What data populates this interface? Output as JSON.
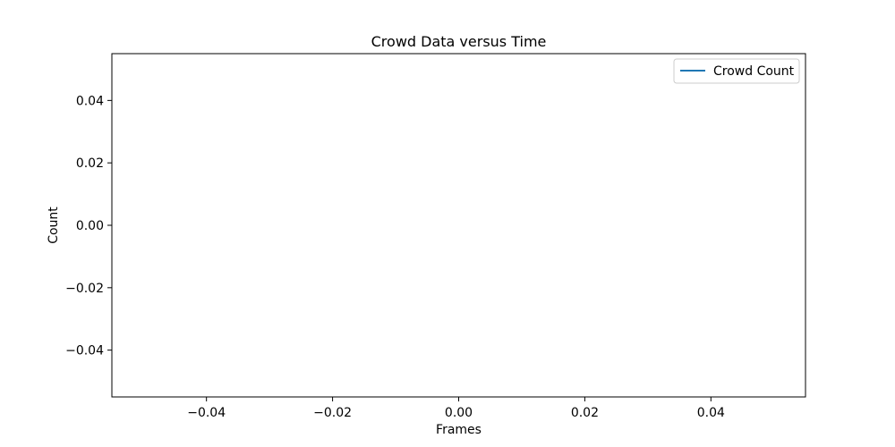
{
  "chart_data": {
    "type": "line",
    "title": "Crowd Data versus Time",
    "xlabel": "Frames",
    "ylabel": "Count",
    "xlim": [
      -0.055,
      0.055
    ],
    "ylim": [
      -0.055,
      0.055
    ],
    "x_ticks": [
      -0.04,
      -0.02,
      0.0,
      0.02,
      0.04
    ],
    "x_tick_labels": [
      "−0.04",
      "−0.02",
      "0.00",
      "0.02",
      "0.04"
    ],
    "y_ticks": [
      0.04,
      0.02,
      0.0,
      -0.02,
      -0.04
    ],
    "y_tick_labels": [
      "0.04",
      "0.02",
      "0.00",
      "−0.02",
      "−0.04"
    ],
    "grid": false,
    "legend_position": "top-right",
    "series": [
      {
        "name": "Crowd Count",
        "color": "#1f77b4",
        "x": [],
        "y": []
      }
    ]
  }
}
